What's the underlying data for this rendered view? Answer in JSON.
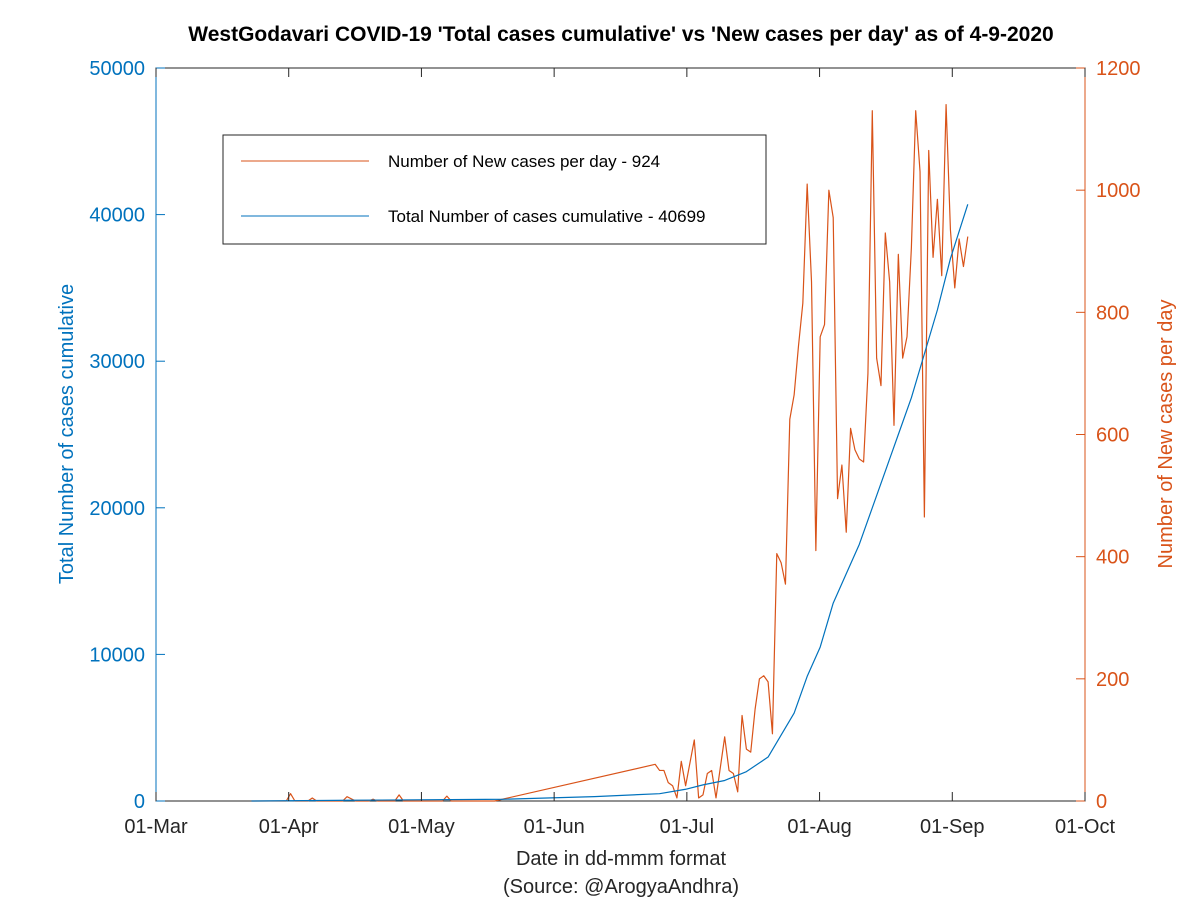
{
  "chart_data": {
    "type": "line",
    "title": "WestGodavari COVID-19 'Total cases cumulative' vs 'New cases per day' as of 4-9-2020",
    "xlabel": "Date in dd-mmm format",
    "source": "(Source: @ArogyaAndhra)",
    "ylabel_left": "Total Number of cases cumulative",
    "ylabel_right": "Number of New cases per day",
    "x_ticks": [
      "01-Mar",
      "01-Apr",
      "01-May",
      "01-Jun",
      "01-Jul",
      "01-Aug",
      "01-Sep",
      "01-Oct"
    ],
    "xlim": [
      "2020-03-01",
      "2020-10-01"
    ],
    "ylim_left": [
      0,
      50000
    ],
    "ylim_right": [
      0,
      1200
    ],
    "left_ticks": [
      "0",
      "10000",
      "20000",
      "30000",
      "40000",
      "50000"
    ],
    "right_ticks": [
      "0",
      "200",
      "400",
      "600",
      "800",
      "1000",
      "1200"
    ],
    "grid": false,
    "legend_position": "top-left",
    "colors": {
      "left_axis": "#0072BD",
      "right_axis": "#D95319",
      "axes": "#262626"
    },
    "series": [
      {
        "name": "Number of New cases per day - 924",
        "axis": "right",
        "color": "#D95319",
        "points": [
          [
            "2020-03-23",
            0
          ],
          [
            "2020-03-31",
            0
          ],
          [
            "2020-04-01",
            12
          ],
          [
            "2020-04-02",
            0
          ],
          [
            "2020-04-05",
            0
          ],
          [
            "2020-04-06",
            5
          ],
          [
            "2020-04-07",
            0
          ],
          [
            "2020-04-13",
            0
          ],
          [
            "2020-04-14",
            7
          ],
          [
            "2020-04-16",
            0
          ],
          [
            "2020-04-19",
            0
          ],
          [
            "2020-04-20",
            3
          ],
          [
            "2020-04-21",
            0
          ],
          [
            "2020-04-25",
            0
          ],
          [
            "2020-04-26",
            10
          ],
          [
            "2020-04-27",
            0
          ],
          [
            "2020-05-06",
            0
          ],
          [
            "2020-05-07",
            8
          ],
          [
            "2020-05-08",
            0
          ],
          [
            "2020-05-18",
            0
          ],
          [
            "2020-06-24",
            60
          ],
          [
            "2020-06-25",
            50
          ],
          [
            "2020-06-26",
            50
          ],
          [
            "2020-06-27",
            30
          ],
          [
            "2020-06-28",
            25
          ],
          [
            "2020-06-29",
            5
          ],
          [
            "2020-06-30",
            65
          ],
          [
            "2020-07-01",
            25
          ],
          [
            "2020-07-03",
            100
          ],
          [
            "2020-07-04",
            5
          ],
          [
            "2020-07-05",
            10
          ],
          [
            "2020-07-06",
            45
          ],
          [
            "2020-07-07",
            50
          ],
          [
            "2020-07-08",
            5
          ],
          [
            "2020-07-10",
            105
          ],
          [
            "2020-07-11",
            50
          ],
          [
            "2020-07-12",
            45
          ],
          [
            "2020-07-13",
            15
          ],
          [
            "2020-07-14",
            140
          ],
          [
            "2020-07-15",
            85
          ],
          [
            "2020-07-16",
            80
          ],
          [
            "2020-07-17",
            150
          ],
          [
            "2020-07-18",
            200
          ],
          [
            "2020-07-19",
            205
          ],
          [
            "2020-07-20",
            195
          ],
          [
            "2020-07-21",
            110
          ],
          [
            "2020-07-22",
            405
          ],
          [
            "2020-07-23",
            390
          ],
          [
            "2020-07-24",
            355
          ],
          [
            "2020-07-25",
            625
          ],
          [
            "2020-07-26",
            665
          ],
          [
            "2020-07-27",
            745
          ],
          [
            "2020-07-28",
            815
          ],
          [
            "2020-07-29",
            1010
          ],
          [
            "2020-07-30",
            850
          ],
          [
            "2020-07-31",
            410
          ],
          [
            "2020-08-01",
            760
          ],
          [
            "2020-08-02",
            780
          ],
          [
            "2020-08-03",
            1000
          ],
          [
            "2020-08-04",
            955
          ],
          [
            "2020-08-05",
            495
          ],
          [
            "2020-08-06",
            550
          ],
          [
            "2020-08-07",
            440
          ],
          [
            "2020-08-08",
            610
          ],
          [
            "2020-08-09",
            575
          ],
          [
            "2020-08-10",
            560
          ],
          [
            "2020-08-11",
            555
          ],
          [
            "2020-08-12",
            700
          ],
          [
            "2020-08-13",
            1130
          ],
          [
            "2020-08-14",
            725
          ],
          [
            "2020-08-15",
            680
          ],
          [
            "2020-08-16",
            930
          ],
          [
            "2020-08-17",
            850
          ],
          [
            "2020-08-18",
            615
          ],
          [
            "2020-08-19",
            895
          ],
          [
            "2020-08-20",
            725
          ],
          [
            "2020-08-21",
            760
          ],
          [
            "2020-08-22",
            905
          ],
          [
            "2020-08-23",
            1130
          ],
          [
            "2020-08-24",
            1030
          ],
          [
            "2020-08-25",
            465
          ],
          [
            "2020-08-26",
            1065
          ],
          [
            "2020-08-27",
            890
          ],
          [
            "2020-08-28",
            985
          ],
          [
            "2020-08-29",
            860
          ],
          [
            "2020-08-30",
            1140
          ],
          [
            "2020-08-31",
            935
          ],
          [
            "2020-09-01",
            840
          ],
          [
            "2020-09-02",
            920
          ],
          [
            "2020-09-03",
            875
          ],
          [
            "2020-09-04",
            924
          ]
        ]
      },
      {
        "name": "Total Number of cases cumulative - 40699",
        "axis": "left",
        "color": "#0072BD",
        "points": [
          [
            "2020-03-23",
            0
          ],
          [
            "2020-04-15",
            50
          ],
          [
            "2020-05-20",
            120
          ],
          [
            "2020-06-10",
            300
          ],
          [
            "2020-06-25",
            500
          ],
          [
            "2020-07-01",
            800
          ],
          [
            "2020-07-05",
            1100
          ],
          [
            "2020-07-10",
            1400
          ],
          [
            "2020-07-15",
            2000
          ],
          [
            "2020-07-20",
            3000
          ],
          [
            "2020-07-23",
            4500
          ],
          [
            "2020-07-26",
            6000
          ],
          [
            "2020-07-29",
            8500
          ],
          [
            "2020-08-01",
            10500
          ],
          [
            "2020-08-04",
            13500
          ],
          [
            "2020-08-07",
            15500
          ],
          [
            "2020-08-10",
            17500
          ],
          [
            "2020-08-13",
            20000
          ],
          [
            "2020-08-16",
            22500
          ],
          [
            "2020-08-19",
            25000
          ],
          [
            "2020-08-22",
            27500
          ],
          [
            "2020-08-25",
            30500
          ],
          [
            "2020-08-28",
            33500
          ],
          [
            "2020-08-31",
            37000
          ],
          [
            "2020-09-04",
            40699
          ]
        ]
      }
    ]
  }
}
